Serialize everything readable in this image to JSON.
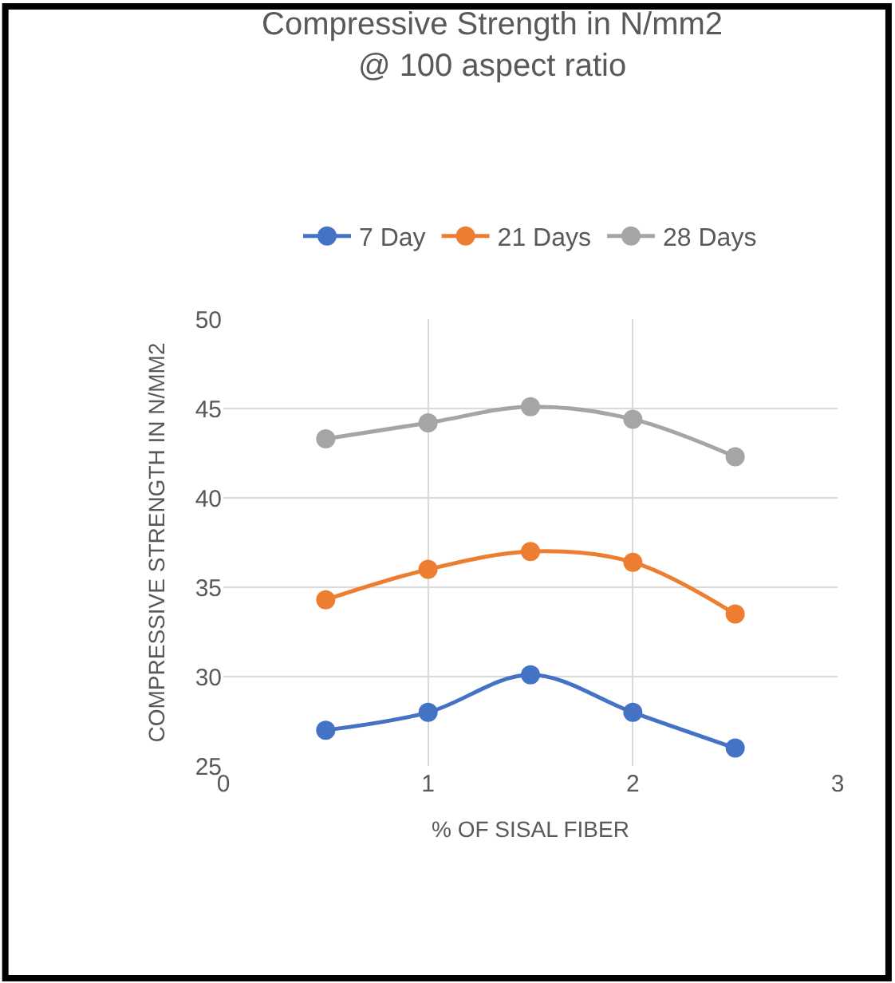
{
  "chart_data": {
    "type": "line",
    "title": "Compressive Strength in N/mm2\n@ 100 aspect ratio",
    "xlabel": "% OF SISAL FIBER",
    "ylabel": "COMPRESSIVE STRENGTH IN N/MM2",
    "x": [
      0.5,
      1,
      1.5,
      2,
      2.5
    ],
    "series": [
      {
        "name": "7 Day",
        "color": "#4472c4",
        "values": [
          27,
          28,
          30.1,
          28,
          26
        ]
      },
      {
        "name": "21 Days",
        "color": "#ed7d31",
        "values": [
          34.3,
          36,
          37,
          36.4,
          33.5
        ]
      },
      {
        "name": "28 Days",
        "color": "#a5a5a5",
        "values": [
          43.3,
          44.2,
          45.1,
          44.4,
          42.3
        ]
      }
    ],
    "xlim": [
      0,
      3
    ],
    "xticks": [
      0,
      1,
      2,
      3
    ],
    "ylim": [
      25,
      50
    ],
    "yticks": [
      25,
      30,
      35,
      40,
      45,
      50
    ],
    "grid": true,
    "legend": "top",
    "marker": "circle",
    "line_style": "solid"
  }
}
